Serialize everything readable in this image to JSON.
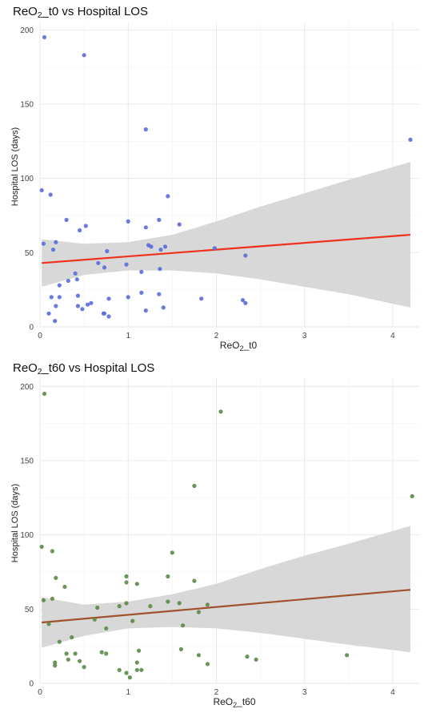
{
  "chart_data": [
    {
      "type": "scatter",
      "title_main": "ReO",
      "title_sub": "2",
      "title_rest": "_t0 vs Hospital LOS",
      "xlabel_main": "ReO",
      "xlabel_sub": "2",
      "xlabel_rest": "_t0",
      "ylabel": "Hospital LOS (days)",
      "xlim": [
        0,
        4.3
      ],
      "ylim": [
        0,
        205
      ],
      "xticks": [
        0,
        1,
        2,
        3,
        4
      ],
      "yticks": [
        0,
        50,
        100,
        150,
        200
      ],
      "grid": true,
      "point_color": "#5b6bdb",
      "line_color": "#f0311b",
      "band_color": "#d6d6d6",
      "fit": {
        "x0": 0.02,
        "y0": 43,
        "x1": 4.2,
        "y1": 62
      },
      "band": {
        "x": [
          0.02,
          0.5,
          1.0,
          1.5,
          2.0,
          2.5,
          3.0,
          3.5,
          4.2
        ],
        "lower": [
          27,
          35,
          38,
          38,
          36,
          32,
          27,
          22,
          13
        ],
        "upper": [
          59,
          56,
          57,
          62,
          71,
          81,
          90,
          99,
          111
        ]
      },
      "points": [
        {
          "x": 0.05,
          "y": 195
        },
        {
          "x": 0.5,
          "y": 183
        },
        {
          "x": 1.2,
          "y": 133
        },
        {
          "x": 4.2,
          "y": 126
        },
        {
          "x": 0.02,
          "y": 92
        },
        {
          "x": 0.12,
          "y": 89
        },
        {
          "x": 1.45,
          "y": 88
        },
        {
          "x": 1.0,
          "y": 71
        },
        {
          "x": 1.35,
          "y": 72
        },
        {
          "x": 0.3,
          "y": 72
        },
        {
          "x": 1.58,
          "y": 69
        },
        {
          "x": 1.2,
          "y": 67
        },
        {
          "x": 0.52,
          "y": 68
        },
        {
          "x": 0.45,
          "y": 65
        },
        {
          "x": 0.18,
          "y": 57
        },
        {
          "x": 0.04,
          "y": 56
        },
        {
          "x": 1.23,
          "y": 55
        },
        {
          "x": 1.26,
          "y": 54
        },
        {
          "x": 1.42,
          "y": 54
        },
        {
          "x": 1.37,
          "y": 52
        },
        {
          "x": 1.98,
          "y": 53
        },
        {
          "x": 0.15,
          "y": 52
        },
        {
          "x": 0.76,
          "y": 51
        },
        {
          "x": 2.33,
          "y": 48
        },
        {
          "x": 0.66,
          "y": 43
        },
        {
          "x": 0.98,
          "y": 42
        },
        {
          "x": 0.73,
          "y": 40
        },
        {
          "x": 1.36,
          "y": 39
        },
        {
          "x": 1.15,
          "y": 37
        },
        {
          "x": 0.4,
          "y": 36
        },
        {
          "x": 0.42,
          "y": 32
        },
        {
          "x": 0.32,
          "y": 31
        },
        {
          "x": 0.22,
          "y": 28
        },
        {
          "x": 1.15,
          "y": 23
        },
        {
          "x": 1.35,
          "y": 22
        },
        {
          "x": 0.43,
          "y": 21
        },
        {
          "x": 0.22,
          "y": 20
        },
        {
          "x": 0.13,
          "y": 20
        },
        {
          "x": 1.0,
          "y": 20
        },
        {
          "x": 1.83,
          "y": 19
        },
        {
          "x": 0.78,
          "y": 19
        },
        {
          "x": 2.3,
          "y": 18
        },
        {
          "x": 2.33,
          "y": 16
        },
        {
          "x": 0.58,
          "y": 16
        },
        {
          "x": 0.54,
          "y": 15
        },
        {
          "x": 0.43,
          "y": 14
        },
        {
          "x": 0.18,
          "y": 14
        },
        {
          "x": 1.4,
          "y": 13
        },
        {
          "x": 0.48,
          "y": 12
        },
        {
          "x": 1.2,
          "y": 11
        },
        {
          "x": 0.1,
          "y": 9
        },
        {
          "x": 0.72,
          "y": 9
        },
        {
          "x": 0.73,
          "y": 9
        },
        {
          "x": 0.78,
          "y": 7
        },
        {
          "x": 0.17,
          "y": 4
        }
      ]
    },
    {
      "type": "scatter",
      "title_main": "ReO",
      "title_sub": "2",
      "title_rest": "_t60 vs Hospital LOS",
      "xlabel_main": "ReO",
      "xlabel_sub": "2",
      "xlabel_rest": "_t60",
      "ylabel": "Hospital LOS (days)",
      "xlim": [
        0,
        4.3
      ],
      "ylim": [
        0,
        205
      ],
      "xticks": [
        0,
        1,
        2,
        3,
        4
      ],
      "yticks": [
        0,
        50,
        100,
        150,
        200
      ],
      "grid": true,
      "point_color": "#5c8a48",
      "line_color": "#a0522d",
      "band_color": "#d6d6d6",
      "fit": {
        "x0": 0.02,
        "y0": 41,
        "x1": 4.2,
        "y1": 63
      },
      "band": {
        "x": [
          0.02,
          0.5,
          1.0,
          1.5,
          2.0,
          2.5,
          3.0,
          3.5,
          4.2
        ],
        "lower": [
          24,
          32,
          37,
          38,
          37,
          34,
          30,
          26,
          21
        ],
        "upper": [
          58,
          53,
          55,
          60,
          67,
          77,
          86,
          94,
          106
        ]
      },
      "points": [
        {
          "x": 0.05,
          "y": 195
        },
        {
          "x": 2.05,
          "y": 183
        },
        {
          "x": 1.75,
          "y": 133
        },
        {
          "x": 4.22,
          "y": 126
        },
        {
          "x": 0.02,
          "y": 92
        },
        {
          "x": 0.14,
          "y": 89
        },
        {
          "x": 1.5,
          "y": 88
        },
        {
          "x": 0.98,
          "y": 72
        },
        {
          "x": 1.45,
          "y": 72
        },
        {
          "x": 0.18,
          "y": 71
        },
        {
          "x": 1.75,
          "y": 69
        },
        {
          "x": 0.98,
          "y": 68
        },
        {
          "x": 1.1,
          "y": 67
        },
        {
          "x": 0.28,
          "y": 65
        },
        {
          "x": 0.14,
          "y": 57
        },
        {
          "x": 0.04,
          "y": 56
        },
        {
          "x": 1.45,
          "y": 55
        },
        {
          "x": 0.98,
          "y": 54
        },
        {
          "x": 1.58,
          "y": 54
        },
        {
          "x": 1.9,
          "y": 53
        },
        {
          "x": 0.9,
          "y": 52
        },
        {
          "x": 1.25,
          "y": 52
        },
        {
          "x": 0.65,
          "y": 51
        },
        {
          "x": 1.8,
          "y": 48
        },
        {
          "x": 0.62,
          "y": 43
        },
        {
          "x": 1.05,
          "y": 42
        },
        {
          "x": 0.1,
          "y": 40
        },
        {
          "x": 1.62,
          "y": 39
        },
        {
          "x": 0.75,
          "y": 37
        },
        {
          "x": 0.36,
          "y": 31
        },
        {
          "x": 0.22,
          "y": 28
        },
        {
          "x": 1.6,
          "y": 23
        },
        {
          "x": 1.12,
          "y": 22
        },
        {
          "x": 0.7,
          "y": 21
        },
        {
          "x": 0.75,
          "y": 20
        },
        {
          "x": 0.3,
          "y": 20
        },
        {
          "x": 0.4,
          "y": 20
        },
        {
          "x": 1.8,
          "y": 19
        },
        {
          "x": 3.48,
          "y": 19
        },
        {
          "x": 2.35,
          "y": 18
        },
        {
          "x": 0.32,
          "y": 16
        },
        {
          "x": 2.45,
          "y": 16
        },
        {
          "x": 0.45,
          "y": 15
        },
        {
          "x": 0.17,
          "y": 14
        },
        {
          "x": 1.1,
          "y": 14
        },
        {
          "x": 1.9,
          "y": 13
        },
        {
          "x": 0.17,
          "y": 12
        },
        {
          "x": 0.5,
          "y": 11
        },
        {
          "x": 1.15,
          "y": 9
        },
        {
          "x": 1.1,
          "y": 9
        },
        {
          "x": 0.9,
          "y": 9
        },
        {
          "x": 0.98,
          "y": 7
        },
        {
          "x": 1.02,
          "y": 4
        }
      ]
    }
  ]
}
